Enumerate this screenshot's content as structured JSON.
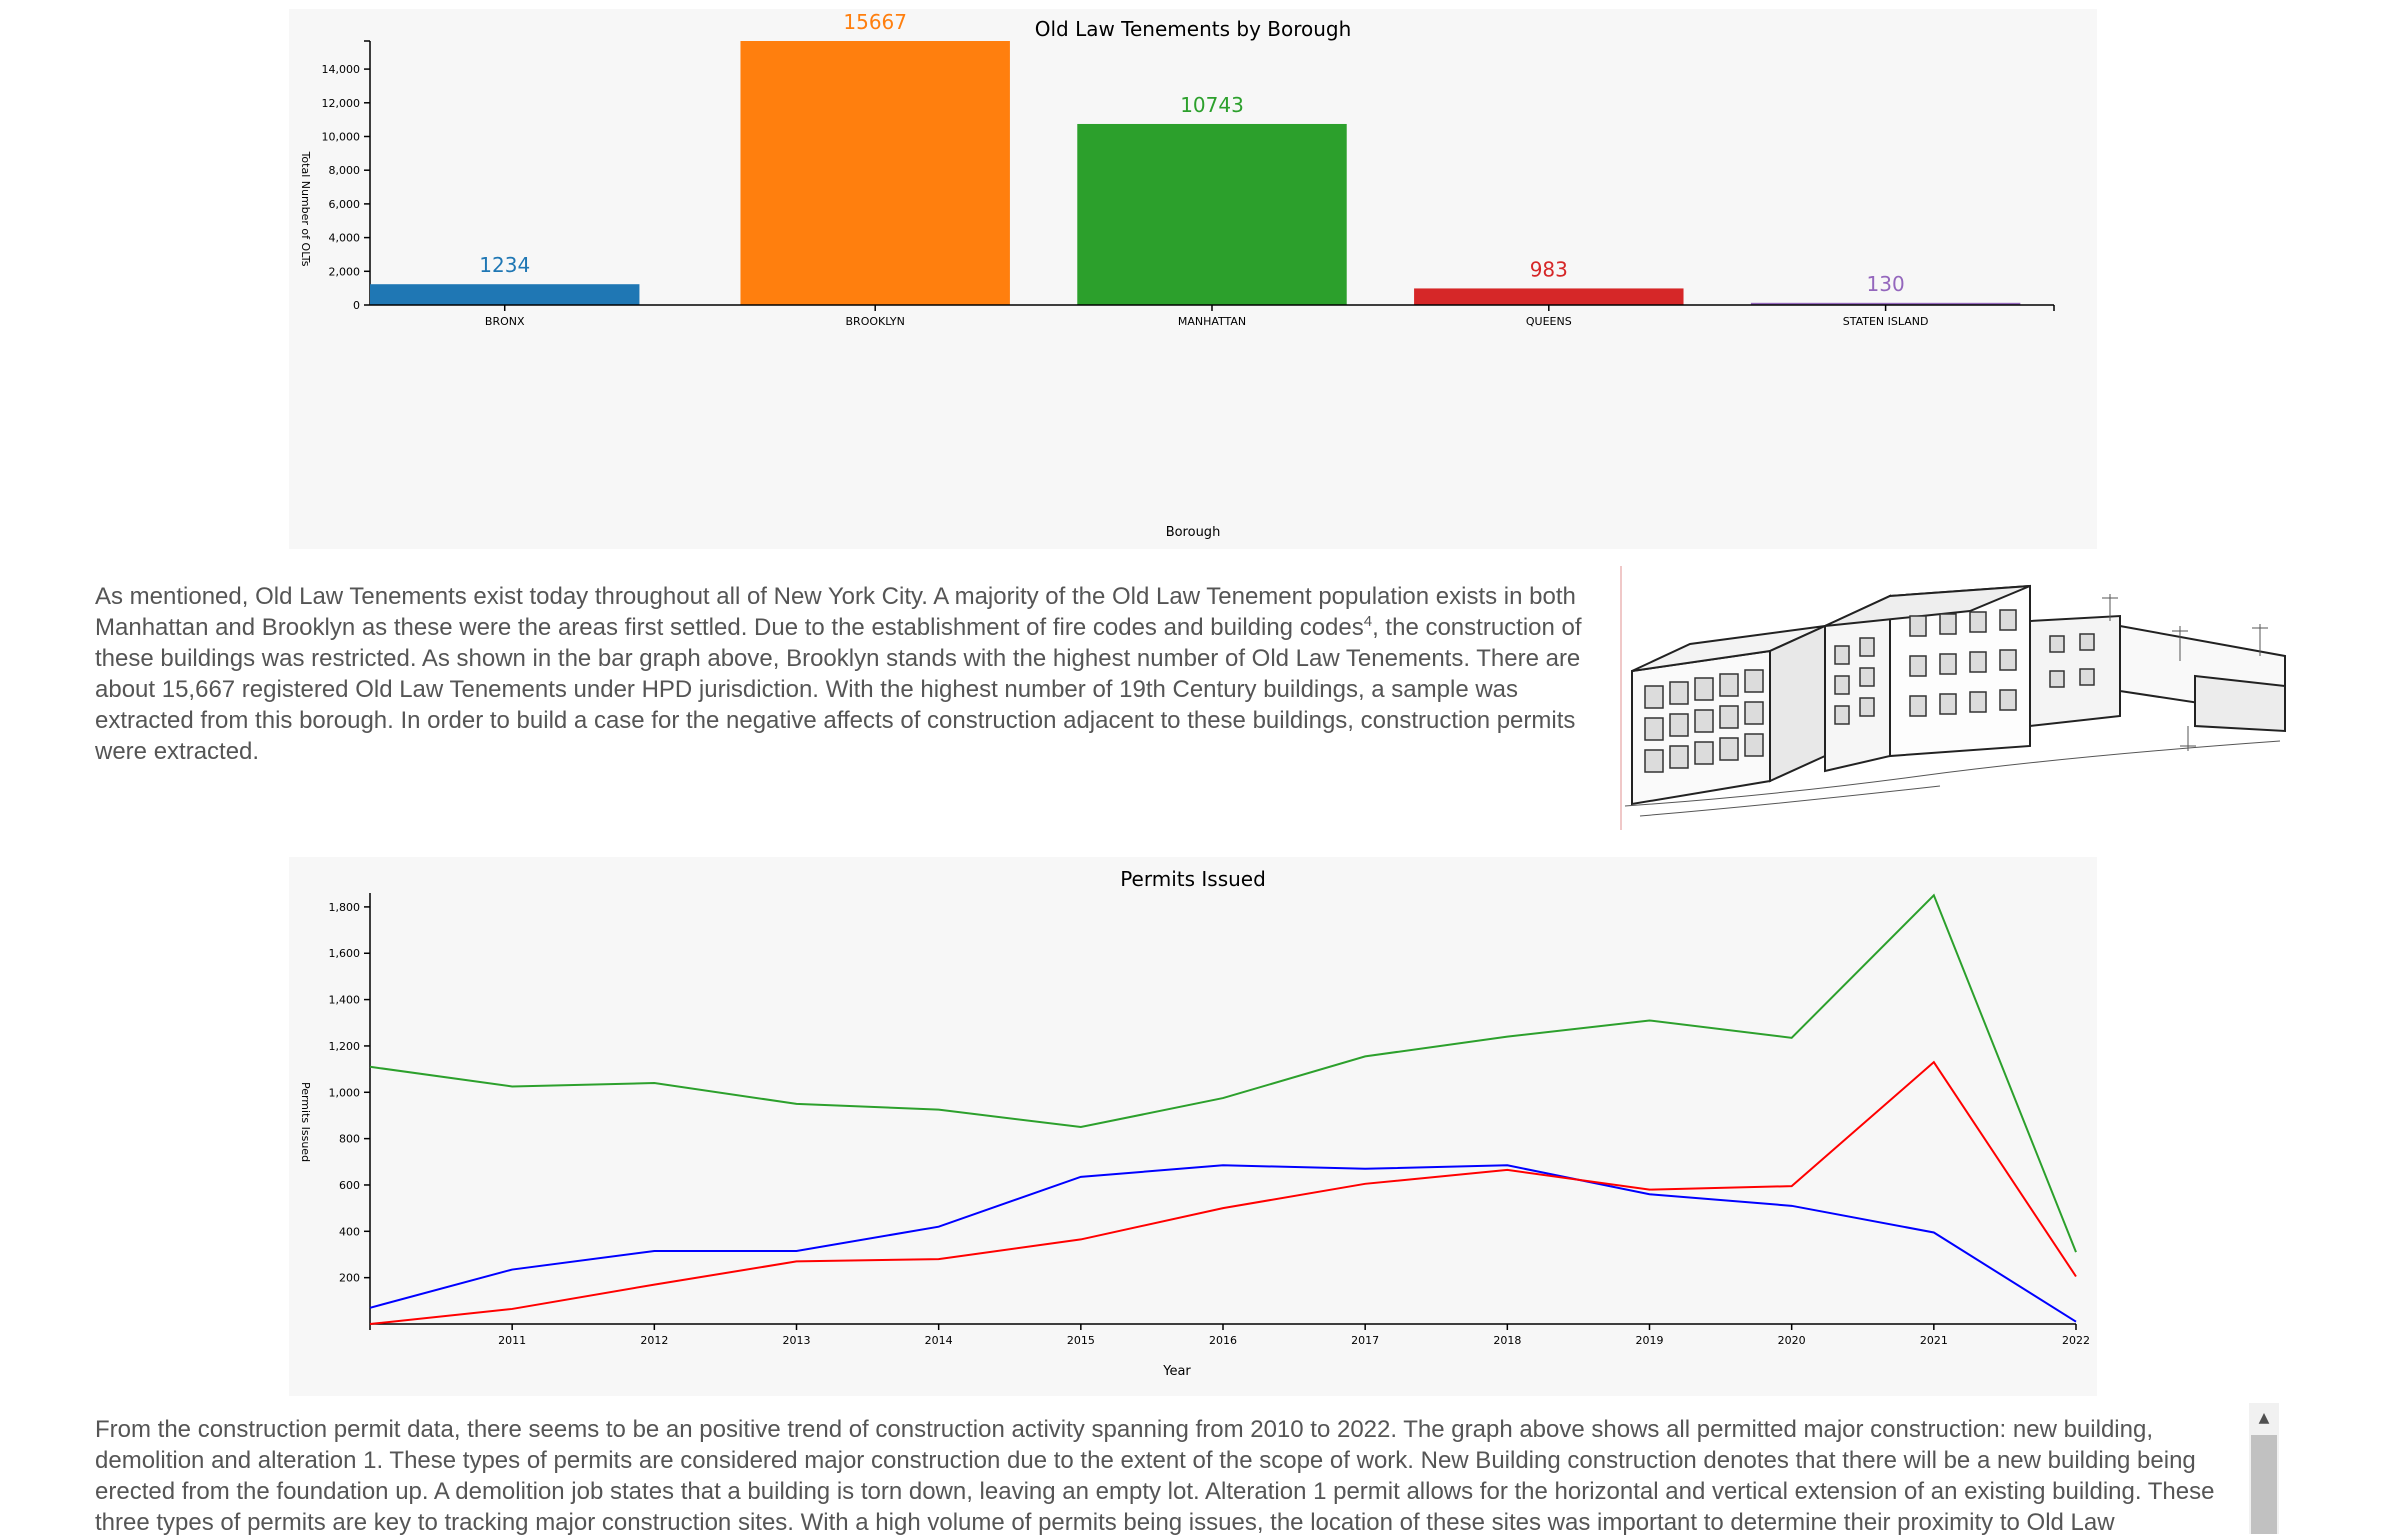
{
  "chart_data": [
    {
      "type": "bar",
      "title": "Old Law Tenements by Borough",
      "xlabel": "Borough",
      "ylabel": "Total Number of OLTs",
      "categories": [
        "BRONX",
        "BROOKLYN",
        "MANHATTAN",
        "QUEENS",
        "STATEN ISLAND"
      ],
      "values": [
        1234,
        15667,
        10743,
        983,
        130
      ],
      "value_labels": [
        "1234",
        "15667",
        "10743",
        "983",
        "130"
      ],
      "colors": [
        "#1f77b4",
        "#ff7f0e",
        "#2ca02c",
        "#d62728",
        "#9467bd"
      ],
      "yticks": [
        0,
        2000,
        4000,
        6000,
        8000,
        10000,
        12000,
        14000
      ],
      "ytick_labels": [
        "0",
        "2,000",
        "4,000",
        "6,000",
        "8,000",
        "10,000",
        "12,000",
        "14,000"
      ],
      "ylim": [
        0,
        15667
      ],
      "grid": false
    },
    {
      "type": "line",
      "title": "Permits Issued",
      "xlabel": "Year",
      "ylabel": "Permits Issued",
      "x": [
        2010,
        2011,
        2012,
        2013,
        2014,
        2015,
        2016,
        2017,
        2018,
        2019,
        2020,
        2021,
        2022
      ],
      "xtick_labels": [
        "2011",
        "2012",
        "2013",
        "2014",
        "2015",
        "2016",
        "2017",
        "2018",
        "2019",
        "2020",
        "2021",
        "2022"
      ],
      "yticks": [
        200,
        400,
        600,
        800,
        1000,
        1200,
        1400,
        1600,
        1800
      ],
      "ytick_labels": [
        "200",
        "400",
        "600",
        "800",
        "1,000",
        "1,200",
        "1,400",
        "1,600",
        "1,800"
      ],
      "xlim": [
        2010,
        2022
      ],
      "ylim": [
        0,
        1860
      ],
      "grid": false,
      "series": [
        {
          "color": "#2ca02c",
          "values": [
            1110,
            1025,
            1040,
            950,
            925,
            850,
            975,
            1155,
            1240,
            1310,
            1235,
            1850,
            310
          ]
        },
        {
          "color": "#0000ff",
          "values": [
            70,
            235,
            315,
            315,
            420,
            635,
            685,
            670,
            685,
            560,
            510,
            395,
            10
          ]
        },
        {
          "color": "#ff0000",
          "values": [
            0,
            65,
            170,
            270,
            280,
            365,
            500,
            605,
            665,
            580,
            595,
            1130,
            205
          ]
        }
      ]
    }
  ],
  "paragraph1": {
    "before_sup": "As mentioned, Old Law Tenements exist today throughout all of New York City. A majority of the Old Law Tenement population exists in both Manhattan and Brooklyn as these were the areas first settled. Due to the establishment of fire codes and building codes",
    "sup": "4",
    "after_sup": ", the construction of these buildings was restricted. As shown in the bar graph above, Brooklyn stands with the highest number of Old Law Tenements. There are about 15,667 registered Old Law Tenements under HPD jurisdiction. With the highest number of 19th Century buildings, a sample was extracted from this borough. In order to build a case for the negative affects of construction adjacent to these buildings, construction permits were extracted."
  },
  "paragraph2": "From the construction permit data, there seems to be an positive trend of construction activity spanning from 2010 to 2022. The graph above shows all permitted major construction: new building, demolition and alteration 1. These types of permits are considered major construction due to the extent of the scope of work. New Building construction denotes that there will be a new building being erected from the foundation up. A demolition job states that a building is torn down, leaving an empty lot. Alteration 1 permit allows for the horizontal and vertical extension of an existing building. These three types of permits are key to tracking major construction sites. With a high volume of permits being issues, the location of these sites was important to determine their proximity to Old Law",
  "scrollbar": {
    "up_arrow": "▲"
  }
}
